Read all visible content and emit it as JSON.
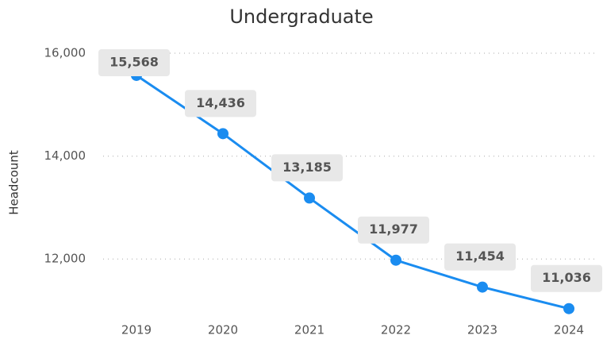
{
  "chart_data": {
    "type": "line",
    "title": "Undergraduate",
    "y_label": "Headcount",
    "categories": [
      "2019",
      "2020",
      "2021",
      "2022",
      "2023",
      "2024"
    ],
    "series": [
      {
        "name": "Headcount",
        "color": "#1a8cf0",
        "values": [
          15568,
          14436,
          13185,
          11977,
          11454,
          11036
        ],
        "value_labels": [
          "15,568",
          "14,436",
          "13,185",
          "11,977",
          "11,454",
          "11,036"
        ]
      }
    ],
    "ylim": [
      10800,
      16200
    ],
    "yticks": [
      {
        "value": 12000,
        "label": "12,000"
      },
      {
        "value": 14000,
        "label": "14,000"
      },
      {
        "value": 16000,
        "label": "16,000"
      }
    ],
    "grid": true
  }
}
